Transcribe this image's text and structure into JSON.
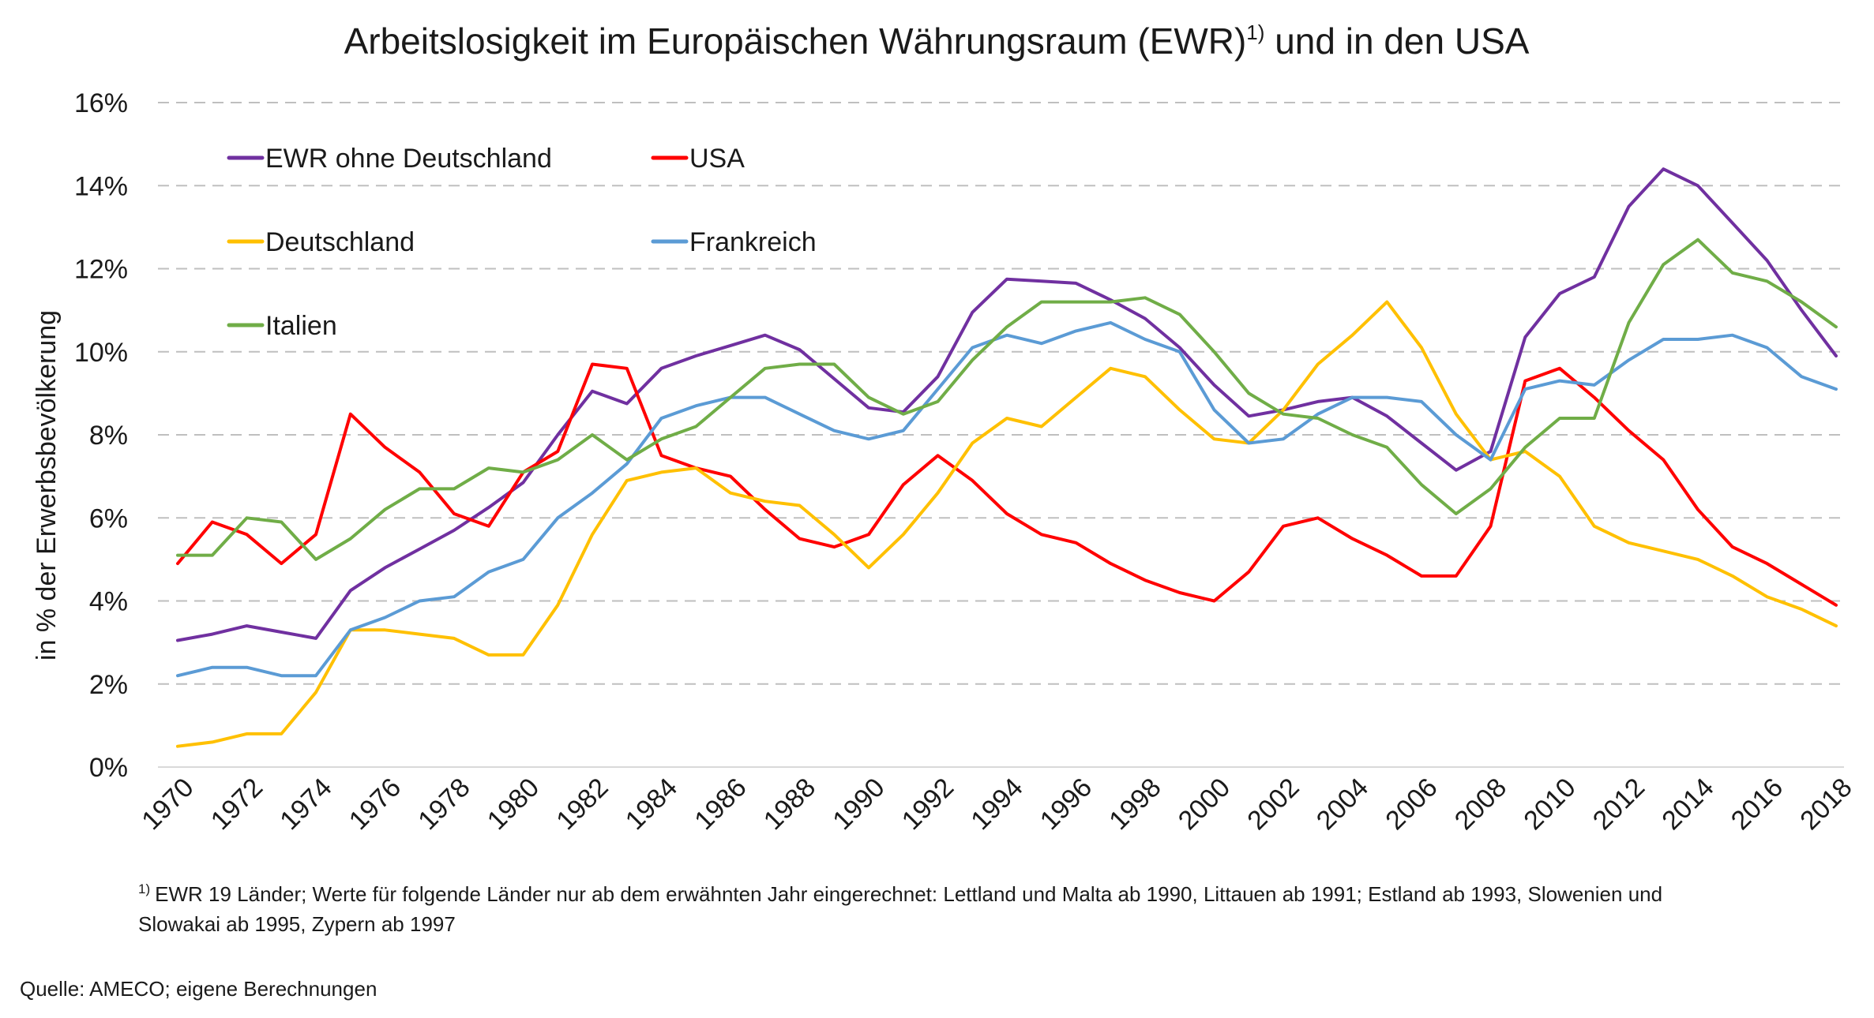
{
  "chart_data": {
    "type": "line",
    "title": "Arbeitslosigkeit im Europäischen Währungsraum (EWR)",
    "title_sup": "1)",
    "title_tail": " und in den USA",
    "ylabel": "in % der Erwerbsbevölkerung",
    "xlabel": "",
    "ylim": [
      0,
      16
    ],
    "y_ticks": [
      "0%",
      "2%",
      "4%",
      "6%",
      "8%",
      "10%",
      "12%",
      "14%",
      "16%"
    ],
    "grid": "horizontal dashed",
    "x": [
      1970,
      1971,
      1972,
      1973,
      1974,
      1975,
      1976,
      1977,
      1978,
      1979,
      1980,
      1981,
      1982,
      1983,
      1984,
      1985,
      1986,
      1987,
      1988,
      1989,
      1990,
      1991,
      1992,
      1993,
      1994,
      1995,
      1996,
      1997,
      1998,
      1999,
      2000,
      2001,
      2002,
      2003,
      2004,
      2005,
      2006,
      2007,
      2008,
      2009,
      2010,
      2011,
      2012,
      2013,
      2014,
      2015,
      2016,
      2017,
      2018
    ],
    "x_tick_labels": [
      "1970",
      "1972",
      "1974",
      "1976",
      "1978",
      "1980",
      "1982",
      "1984",
      "1986",
      "1988",
      "1990",
      "1992",
      "1994",
      "1996",
      "1998",
      "2000",
      "2002",
      "2004",
      "2006",
      "2008",
      "2010",
      "2012",
      "2014",
      "2016",
      "2018"
    ],
    "legend_position": "top-left, inside plot",
    "series": [
      {
        "name": "EWR ohne Deutschland",
        "color": "#7030a0",
        "values": [
          3.05,
          3.2,
          3.4,
          3.25,
          3.1,
          4.25,
          4.8,
          5.25,
          5.7,
          6.25,
          6.85,
          8.0,
          9.05,
          8.75,
          9.6,
          9.9,
          10.15,
          10.4,
          10.05,
          9.35,
          8.65,
          8.55,
          9.4,
          10.95,
          11.75,
          11.7,
          11.65,
          11.25,
          10.8,
          10.1,
          9.2,
          8.45,
          8.6,
          8.8,
          8.9,
          8.45,
          7.8,
          7.15,
          7.6,
          10.35,
          11.4,
          11.8,
          13.5,
          14.4,
          14.0,
          13.1,
          12.2,
          11.0,
          9.9
        ]
      },
      {
        "name": "USA",
        "color": "#ff0000",
        "values": [
          4.9,
          5.9,
          5.6,
          4.9,
          5.6,
          8.5,
          7.7,
          7.1,
          6.1,
          5.8,
          7.1,
          7.6,
          9.7,
          9.6,
          7.5,
          7.2,
          7.0,
          6.2,
          5.5,
          5.3,
          5.6,
          6.8,
          7.5,
          6.9,
          6.1,
          5.6,
          5.4,
          4.9,
          4.5,
          4.2,
          4.0,
          4.7,
          5.8,
          6.0,
          5.5,
          5.1,
          4.6,
          4.6,
          5.8,
          9.3,
          9.6,
          8.9,
          8.1,
          7.4,
          6.2,
          5.3,
          4.9,
          4.4,
          3.9
        ]
      },
      {
        "name": "Deutschland",
        "color": "#ffc000",
        "values": [
          0.5,
          0.6,
          0.8,
          0.8,
          1.8,
          3.3,
          3.3,
          3.2,
          3.1,
          2.7,
          2.7,
          3.9,
          5.6,
          6.9,
          7.1,
          7.2,
          6.6,
          6.4,
          6.3,
          5.6,
          4.8,
          5.6,
          6.6,
          7.8,
          8.4,
          8.2,
          8.9,
          9.6,
          9.4,
          8.6,
          7.9,
          7.8,
          8.6,
          9.7,
          10.4,
          11.2,
          10.1,
          8.5,
          7.4,
          7.6,
          7.0,
          5.8,
          5.4,
          5.2,
          5.0,
          4.6,
          4.1,
          3.8,
          3.4
        ]
      },
      {
        "name": "Frankreich",
        "color": "#5b9bd5",
        "values": [
          2.2,
          2.4,
          2.4,
          2.2,
          2.2,
          3.3,
          3.6,
          4.0,
          4.1,
          4.7,
          5.0,
          6.0,
          6.6,
          7.3,
          8.4,
          8.7,
          8.9,
          8.9,
          8.5,
          8.1,
          7.9,
          8.1,
          9.1,
          10.1,
          10.4,
          10.2,
          10.5,
          10.7,
          10.3,
          10.0,
          8.6,
          7.8,
          7.9,
          8.5,
          8.9,
          8.9,
          8.8,
          8.0,
          7.4,
          9.1,
          9.3,
          9.2,
          9.8,
          10.3,
          10.3,
          10.4,
          10.1,
          9.4,
          9.1
        ]
      },
      {
        "name": "Italien",
        "color": "#70ad47",
        "values": [
          5.1,
          5.1,
          6.0,
          5.9,
          5.0,
          5.5,
          6.2,
          6.7,
          6.7,
          7.2,
          7.1,
          7.4,
          8.0,
          7.4,
          7.9,
          8.2,
          8.9,
          9.6,
          9.7,
          9.7,
          8.9,
          8.5,
          8.8,
          9.8,
          10.6,
          11.2,
          11.2,
          11.2,
          11.3,
          10.9,
          10.0,
          9.0,
          8.5,
          8.4,
          8.0,
          7.7,
          6.8,
          6.1,
          6.7,
          7.7,
          8.4,
          8.4,
          10.7,
          12.1,
          12.7,
          11.9,
          11.7,
          11.2,
          10.6
        ]
      }
    ],
    "legend_order": [
      0,
      1,
      2,
      3,
      4
    ]
  },
  "footnote": {
    "sup": "1)",
    "line1": "EWR 19 Länder; Werte für folgende Länder nur ab dem erwähnten Jahr eingerechnet:  Lettland und Malta ab 1990, Littauen ab 1991; Estland ab 1993, Slowenien und",
    "line2": "Slowakai ab 1995, Zypern ab 1997"
  },
  "source": "Quelle: AMECO; eigene Berechnungen"
}
